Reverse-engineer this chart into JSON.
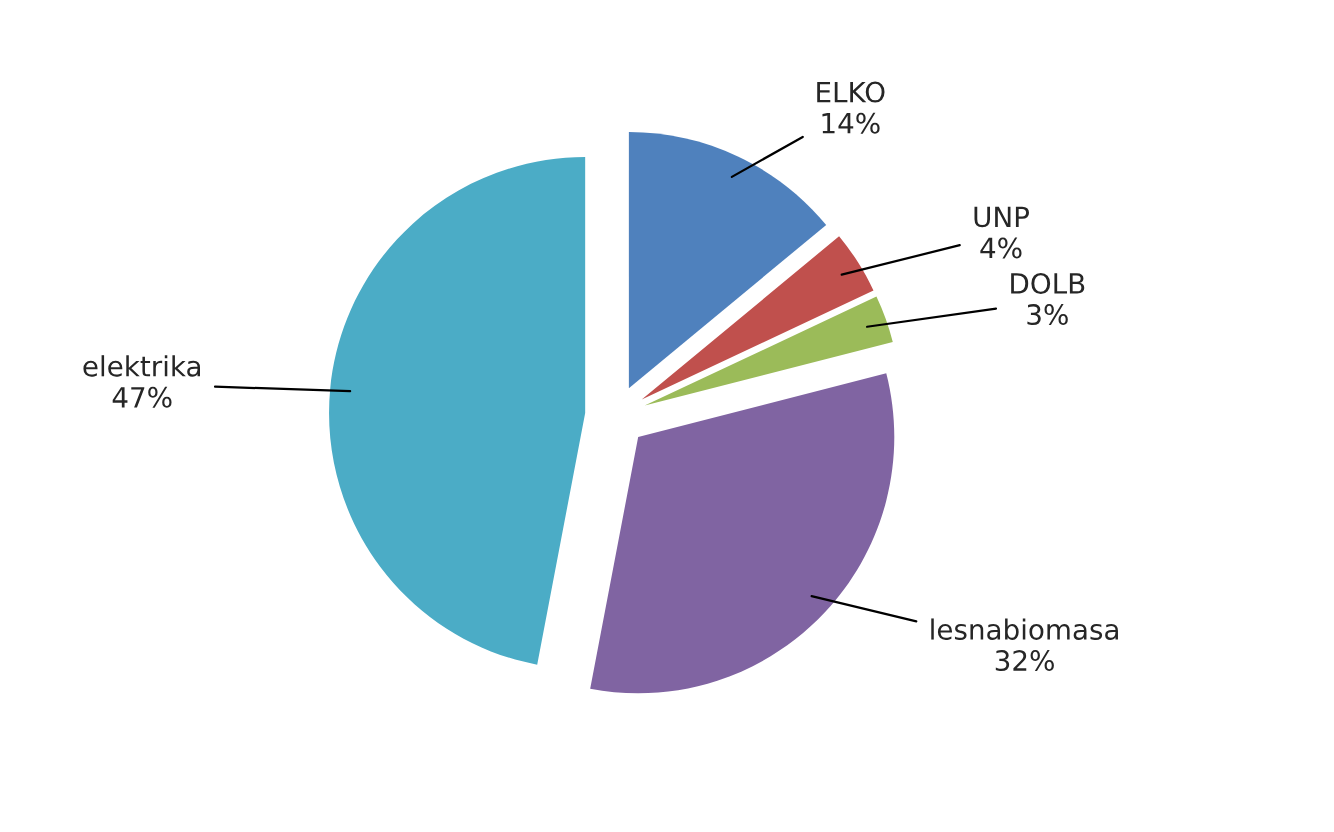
{
  "chart_data": {
    "type": "pie",
    "categories": [
      "ELKO",
      "UNP",
      "DOLB",
      "lesnabiomasa",
      "elektrika"
    ],
    "values": [
      14,
      4,
      3,
      32,
      47
    ],
    "value_labels": [
      "14%",
      "4%",
      "3%",
      "32%",
      "47%"
    ],
    "colors": [
      "#4f81bd",
      "#c0504d",
      "#9bbb59",
      "#8064a2",
      "#4bacc6"
    ],
    "legend": false
  }
}
